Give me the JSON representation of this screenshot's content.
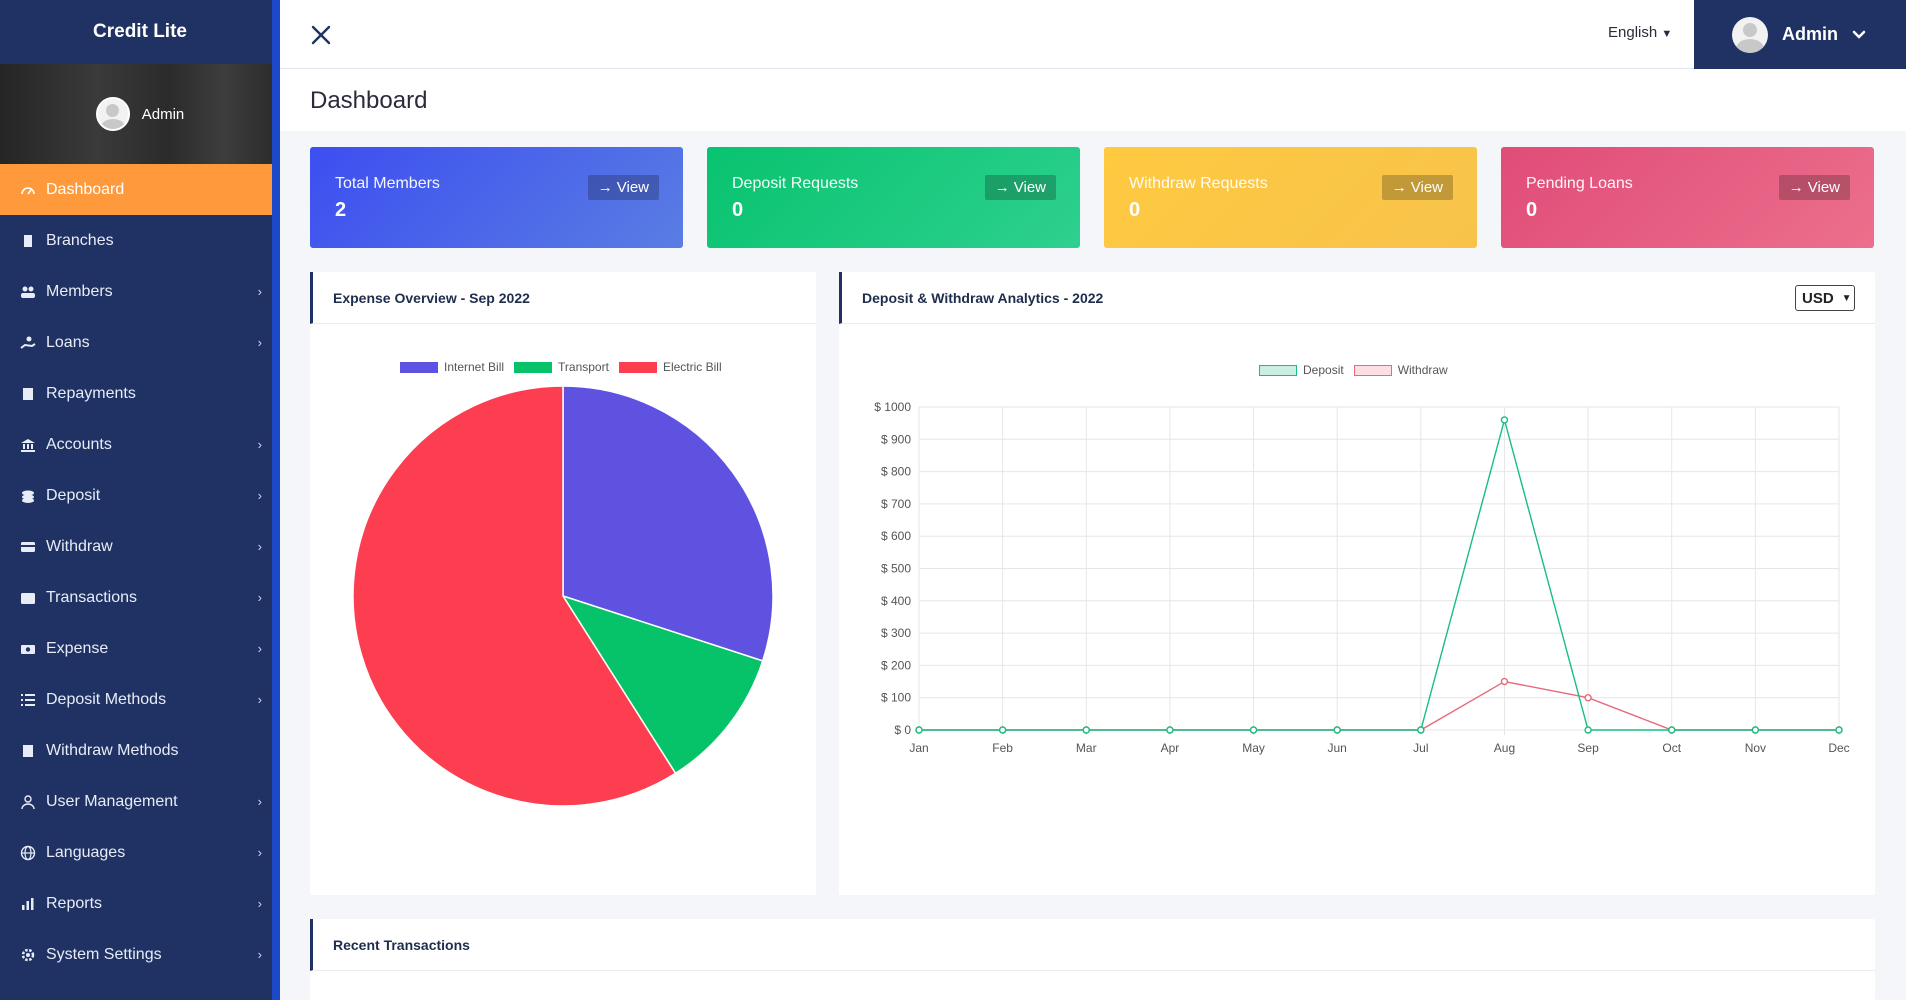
{
  "app": {
    "brand": "Credit Lite"
  },
  "sidebar": {
    "user_name": "Admin",
    "items": [
      {
        "label": "Dashboard",
        "icon": "dashboard-icon",
        "active": true,
        "has_children": false
      },
      {
        "label": "Branches",
        "icon": "building-icon",
        "has_children": false
      },
      {
        "label": "Members",
        "icon": "users-icon",
        "has_children": true
      },
      {
        "label": "Loans",
        "icon": "hand-coin-icon",
        "has_children": true
      },
      {
        "label": "Repayments",
        "icon": "receipt-icon",
        "has_children": false
      },
      {
        "label": "Accounts",
        "icon": "bank-icon",
        "has_children": true
      },
      {
        "label": "Deposit",
        "icon": "coins-icon",
        "has_children": true
      },
      {
        "label": "Withdraw",
        "icon": "card-icon",
        "has_children": true
      },
      {
        "label": "Transactions",
        "icon": "wallet-icon",
        "has_children": true
      },
      {
        "label": "Expense",
        "icon": "money-icon",
        "has_children": true
      },
      {
        "label": "Deposit Methods",
        "icon": "list-icon",
        "has_children": true
      },
      {
        "label": "Withdraw Methods",
        "icon": "receipt-icon",
        "has_children": false
      },
      {
        "label": "User Management",
        "icon": "user-icon",
        "has_children": true
      },
      {
        "label": "Languages",
        "icon": "globe-icon",
        "has_children": true
      },
      {
        "label": "Reports",
        "icon": "bar-chart-icon",
        "has_children": true
      },
      {
        "label": "System Settings",
        "icon": "gear-icon",
        "has_children": true
      }
    ]
  },
  "topbar": {
    "language": "English",
    "admin_name": "Admin"
  },
  "page": {
    "title": "Dashboard"
  },
  "stats": [
    {
      "label": "Total Members",
      "value": "2",
      "view": "View"
    },
    {
      "label": "Deposit Requests",
      "value": "0",
      "view": "View"
    },
    {
      "label": "Withdraw Requests",
      "value": "0",
      "view": "View"
    },
    {
      "label": "Pending Loans",
      "value": "0",
      "view": "View"
    }
  ],
  "expense_panel": {
    "title": "Expense Overview - Sep 2022"
  },
  "analytics_panel": {
    "title": "Deposit & Withdraw Analytics - 2022",
    "currency": "USD"
  },
  "recent_panel": {
    "title": "Recent Transactions"
  },
  "colors": {
    "sidebar": "#1f3263",
    "active": "#ff9a3c",
    "internet": "#5f52e0",
    "transport": "#06c268",
    "electric": "#fd3d50",
    "deposit": "#17bf7e",
    "withdraw": "#e66a7a"
  },
  "chart_data": [
    {
      "type": "pie",
      "legend": [
        "Internet Bill",
        "Transport",
        "Electric Bill"
      ],
      "values": [
        30,
        11,
        59
      ],
      "legend_position": "top"
    },
    {
      "type": "line",
      "categories": [
        "Jan",
        "Feb",
        "Mar",
        "Apr",
        "May",
        "Jun",
        "Jul",
        "Aug",
        "Sep",
        "Oct",
        "Nov",
        "Dec"
      ],
      "series": [
        {
          "name": "Deposit",
          "values": [
            0,
            0,
            0,
            0,
            0,
            0,
            0,
            960,
            0,
            0,
            0,
            0
          ]
        },
        {
          "name": "Withdraw",
          "values": [
            0,
            0,
            0,
            0,
            0,
            0,
            0,
            150,
            100,
            0,
            0,
            0
          ]
        }
      ],
      "ylim": [
        0,
        1000
      ],
      "yticks": [
        "$ 0",
        "$ 100",
        "$ 200",
        "$ 300",
        "$ 400",
        "$ 500",
        "$ 600",
        "$ 700",
        "$ 800",
        "$ 900",
        "$ 1000"
      ],
      "grid": true,
      "legend_position": "top"
    }
  ]
}
